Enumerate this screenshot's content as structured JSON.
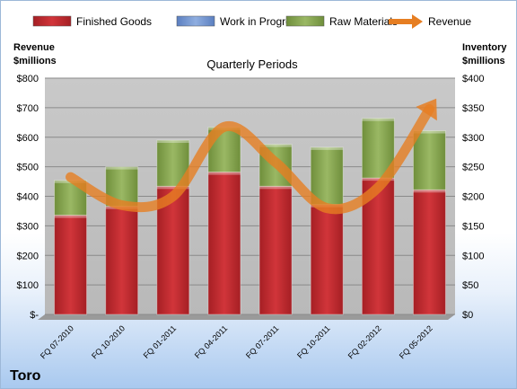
{
  "chart_data": {
    "type": "bar",
    "subtitle": "Quarterly Periods",
    "company": "Toro",
    "y_left_title": [
      "Revenue",
      "$millions"
    ],
    "y_right_title": [
      "Inventory",
      "$millions"
    ],
    "categories": [
      "FQ 07-2010",
      "FQ 10-2010",
      "FQ 01-2011",
      "FQ 04-2011",
      "FQ 07-2011",
      "FQ 10-2011",
      "FQ 02-2012",
      "FQ 05-2012"
    ],
    "left_ticks": [
      "$-",
      "$100",
      "$200",
      "$300",
      "$400",
      "$500",
      "$600",
      "$700",
      "$800"
    ],
    "right_ticks": [
      "$0",
      "$50",
      "$100",
      "$150",
      "$200",
      "$250",
      "$300",
      "$350",
      "$400"
    ],
    "ylim_left": [
      0,
      800
    ],
    "ylim_right": [
      0,
      400
    ],
    "series": [
      {
        "name": "Finished Goods",
        "color": "#c0272d",
        "values": [
          168,
          183,
          217,
          241,
          217,
          186,
          231,
          211
        ]
      },
      {
        "name": "Work in Progress",
        "color": "#6f95d0",
        "values": [
          0,
          0,
          0,
          0,
          0,
          0,
          0,
          0
        ]
      },
      {
        "name": "Raw Materials",
        "color": "#8fac55",
        "values": [
          59,
          67,
          78,
          76,
          71,
          97,
          101,
          100
        ]
      },
      {
        "name": "Revenue",
        "color": "#e67e22",
        "type": "line",
        "values": [
          465,
          370,
          400,
          635,
          515,
          360,
          430,
          695
        ]
      }
    ],
    "legend_position": "top",
    "grid": true
  }
}
